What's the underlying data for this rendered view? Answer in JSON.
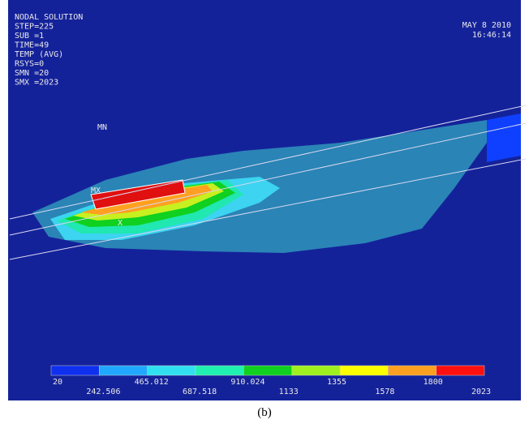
{
  "header": {
    "lines": [
      "NODAL SOLUTION",
      "STEP=225",
      "SUB =1",
      "TIME=49",
      "TEMP     (AVG)",
      "RSYS=0",
      "SMN =20",
      "SMX =2023"
    ],
    "date": "MAY  8 2010",
    "time": "16:46:14"
  },
  "markers": {
    "mn": "MN",
    "mx": "MX",
    "x": "X"
  },
  "legend": {
    "labels": [
      "20",
      "242.506",
      "465.012",
      "687.518",
      "910.024",
      "1133",
      "1355",
      "1578",
      "1800",
      "2023"
    ],
    "colors": [
      "#1030f0",
      "#20a8ff",
      "#30e0f0",
      "#20f0b0",
      "#10d020",
      "#a0f020",
      "#ffff00",
      "#ffa020",
      "#ff1010"
    ]
  },
  "caption": "(b)"
}
